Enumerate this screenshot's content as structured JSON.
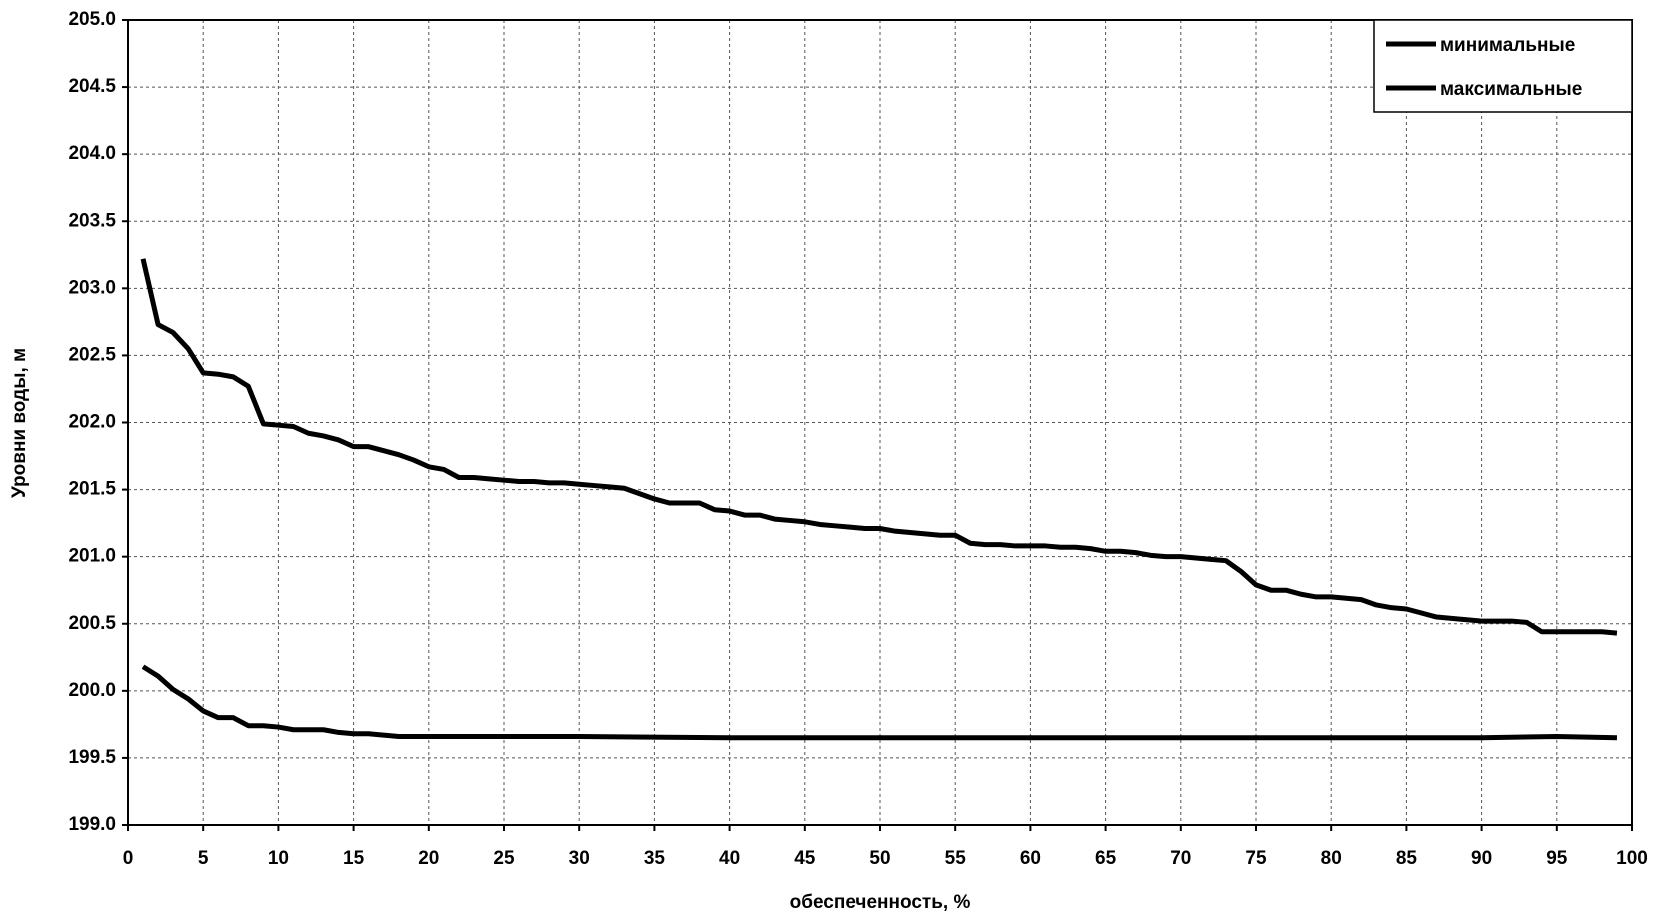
{
  "chart_data": {
    "type": "line",
    "xlabel": "обеспеченность, %",
    "ylabel": "Уровни воды, м",
    "xlim": [
      0,
      100
    ],
    "xticks": [
      0,
      5,
      10,
      15,
      20,
      25,
      30,
      35,
      40,
      45,
      50,
      55,
      60,
      65,
      70,
      75,
      80,
      85,
      90,
      95,
      100
    ],
    "ylim": [
      199,
      205
    ],
    "yticks": [
      {
        "value": 199,
        "label": "199.0"
      },
      199.5,
      {
        "value": 200,
        "label": "200.0"
      },
      200.5,
      {
        "value": 201,
        "label": "201.0"
      },
      201.5,
      {
        "value": 202,
        "label": "202.0"
      },
      202.5,
      {
        "value": 203,
        "label": "203.0"
      },
      203.5,
      {
        "value": 204,
        "label": "204.0"
      },
      204.5,
      {
        "value": 205,
        "label": "205.0"
      }
    ],
    "grid": true,
    "legend": "upper right",
    "series": [
      {
        "name": "минимальные",
        "color": "#000000",
        "x": [
          1,
          2,
          3,
          4,
          5,
          6,
          7,
          8,
          9,
          10,
          11,
          12,
          13,
          14,
          15,
          16,
          17,
          18,
          20,
          30,
          40,
          50,
          60,
          70,
          80,
          90,
          95,
          99
        ],
        "values": [
          200.18,
          200.11,
          200.01,
          199.94,
          199.85,
          199.8,
          199.8,
          199.74,
          199.74,
          199.73,
          199.71,
          199.71,
          199.71,
          199.69,
          199.68,
          199.68,
          199.67,
          199.66,
          199.66,
          199.66,
          199.65,
          199.65,
          199.65,
          199.65,
          199.65,
          199.65,
          199.66,
          199.65
        ]
      },
      {
        "name": "максимальные",
        "color": "#000000",
        "x": [
          1,
          2,
          3,
          4,
          5,
          6,
          7,
          8,
          9,
          10,
          11,
          12,
          13,
          14,
          15,
          16,
          17,
          18,
          19,
          20,
          21,
          22,
          23,
          24,
          25,
          26,
          27,
          28,
          29,
          30,
          31,
          32,
          33,
          34,
          35,
          36,
          37,
          38,
          39,
          40,
          41,
          42,
          43,
          44,
          45,
          46,
          47,
          48,
          49,
          50,
          51,
          52,
          53,
          54,
          55,
          56,
          57,
          58,
          59,
          60,
          61,
          62,
          63,
          64,
          65,
          66,
          67,
          68,
          69,
          70,
          71,
          72,
          73,
          74,
          75,
          76,
          77,
          78,
          79,
          80,
          81,
          82,
          83,
          84,
          85,
          86,
          87,
          88,
          89,
          90,
          91,
          92,
          93,
          94,
          95,
          96,
          97,
          98,
          99
        ],
        "values": [
          203.22,
          202.73,
          202.67,
          202.55,
          202.37,
          202.36,
          202.34,
          202.27,
          201.99,
          201.98,
          201.97,
          201.92,
          201.9,
          201.87,
          201.82,
          201.82,
          201.79,
          201.76,
          201.72,
          201.67,
          201.65,
          201.59,
          201.59,
          201.58,
          201.57,
          201.56,
          201.56,
          201.55,
          201.55,
          201.54,
          201.53,
          201.52,
          201.51,
          201.47,
          201.43,
          201.4,
          201.4,
          201.4,
          201.35,
          201.34,
          201.31,
          201.31,
          201.28,
          201.27,
          201.26,
          201.24,
          201.23,
          201.22,
          201.21,
          201.21,
          201.19,
          201.18,
          201.17,
          201.16,
          201.16,
          201.1,
          201.09,
          201.09,
          201.08,
          201.08,
          201.08,
          201.07,
          201.07,
          201.06,
          201.04,
          201.04,
          201.03,
          201.01,
          201.0,
          201.0,
          200.99,
          200.98,
          200.97,
          200.89,
          200.79,
          200.75,
          200.75,
          200.72,
          200.7,
          200.7,
          200.69,
          200.68,
          200.64,
          200.62,
          200.61,
          200.58,
          200.55,
          200.54,
          200.53,
          200.52,
          200.52,
          200.52,
          200.51,
          200.44,
          200.44,
          200.44,
          200.44,
          200.44,
          200.43
        ]
      }
    ]
  }
}
